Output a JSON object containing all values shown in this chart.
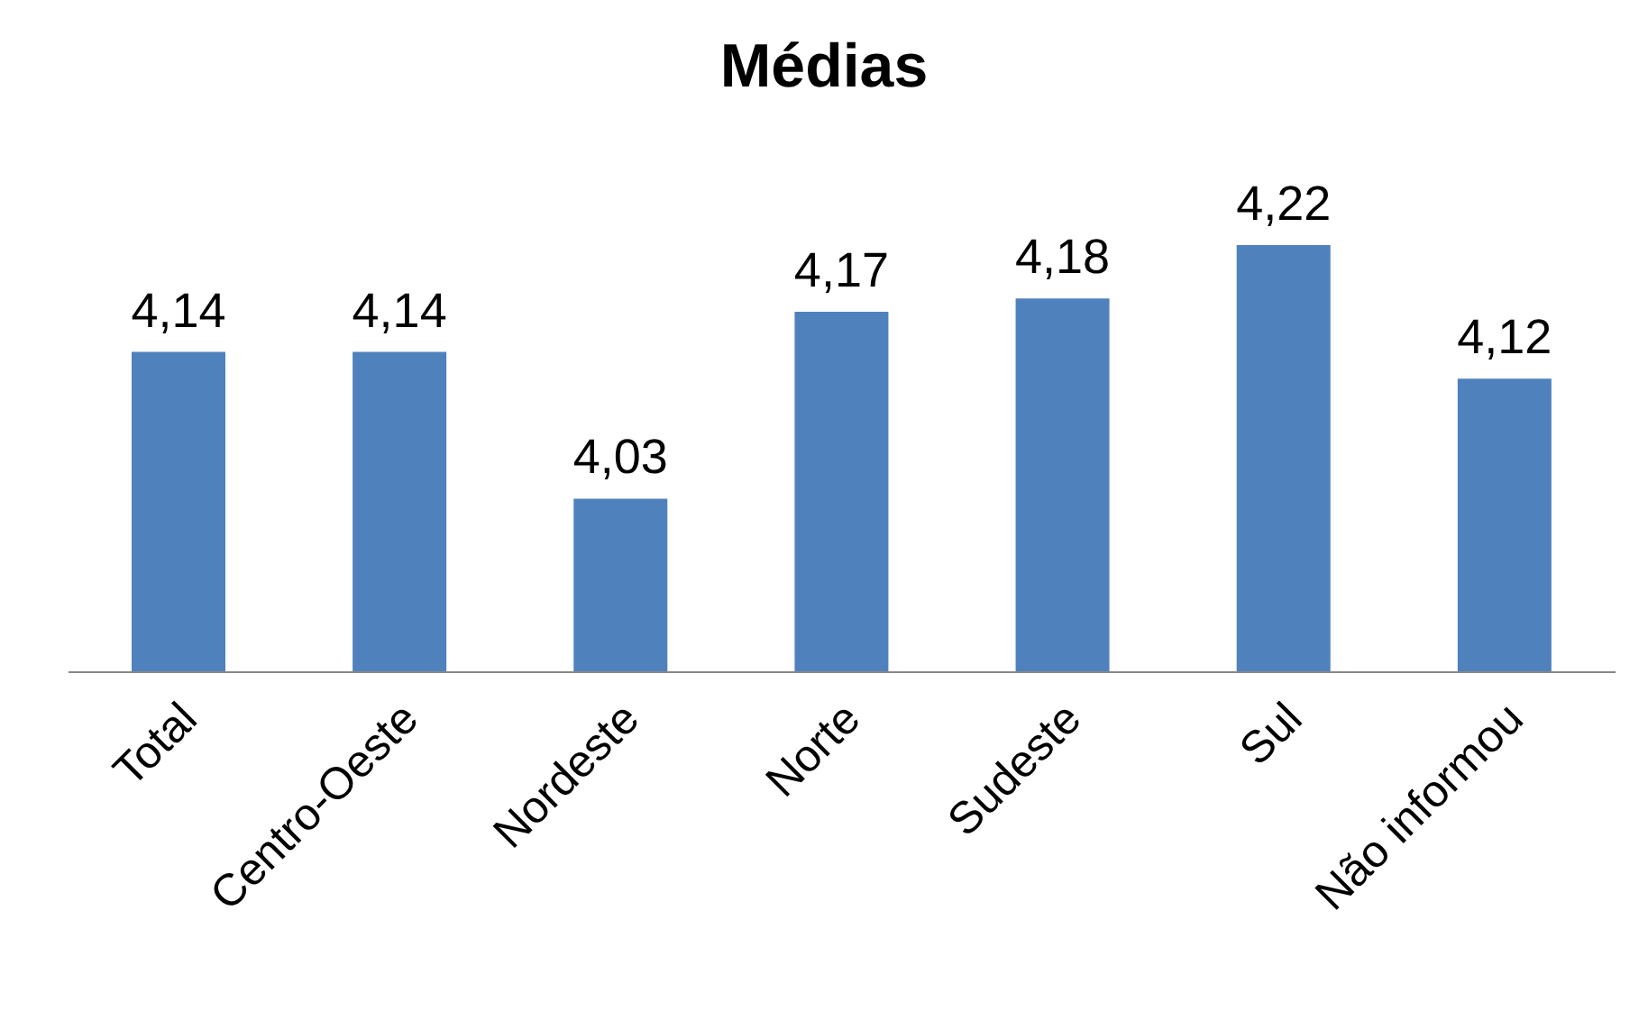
{
  "chart_data": {
    "type": "bar",
    "title": "Médias",
    "categories": [
      "Total",
      "Centro-Oeste",
      "Nordeste",
      "Norte",
      "Sudeste",
      "Sul",
      "Não informou"
    ],
    "values": [
      4.14,
      4.14,
      4.03,
      4.17,
      4.18,
      4.22,
      4.12
    ],
    "value_labels": [
      "4,14",
      "4,14",
      "4,03",
      "4,17",
      "4,18",
      "4,22",
      "4,12"
    ],
    "color": "#4f81bd",
    "ylim": [
      3.9,
      4.22
    ],
    "tick_labels": "x"
  }
}
